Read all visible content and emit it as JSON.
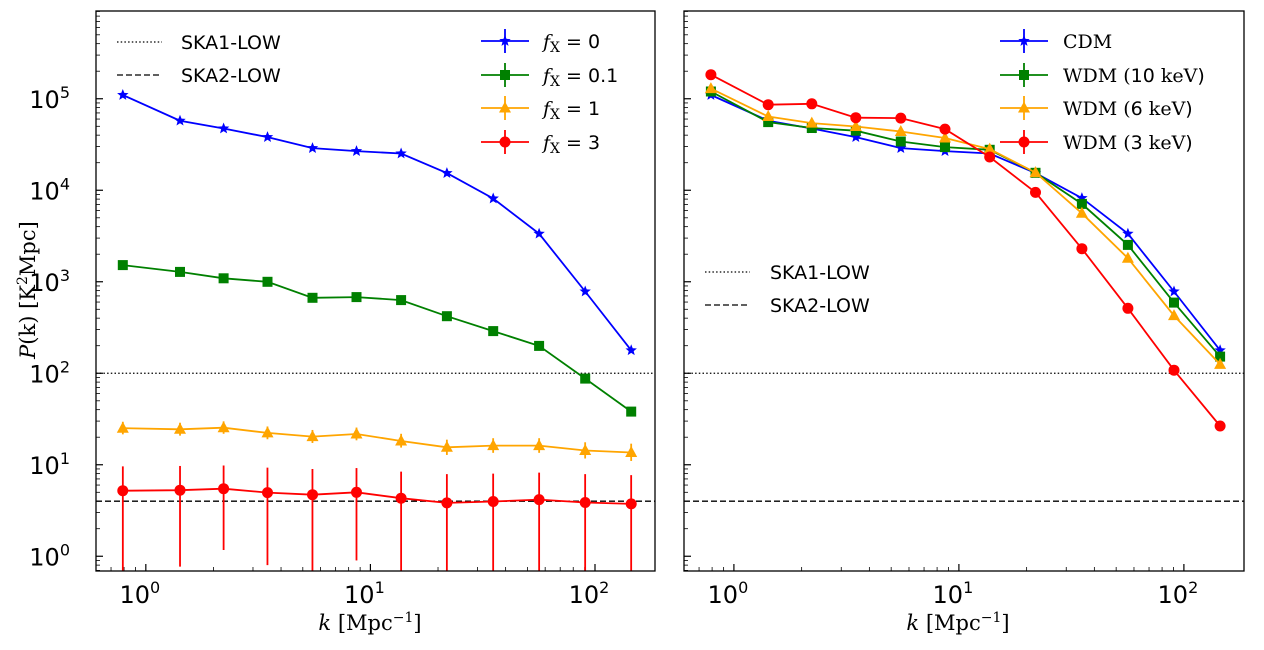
{
  "chart_data": [
    {
      "type": "line",
      "panel": "left",
      "title": "",
      "xlabel": "k [Mpc^-1]",
      "ylabel": "P(k) [K^2Mpc]",
      "xscale": "log",
      "yscale": "log",
      "xlim": [
        0.6,
        185
      ],
      "ylim": [
        0.69,
        910000
      ],
      "x_ticks": [
        {
          "value": 1,
          "base": "10",
          "exp": "0"
        },
        {
          "value": 10,
          "base": "10",
          "exp": "1"
        },
        {
          "value": 100,
          "base": "10",
          "exp": "2"
        }
      ],
      "y_ticks": [
        {
          "value": 1,
          "base": "10",
          "exp": "0"
        },
        {
          "value": 10,
          "base": "10",
          "exp": "1"
        },
        {
          "value": 100,
          "base": "10",
          "exp": "2"
        },
        {
          "value": 1000,
          "base": "10",
          "exp": "3"
        },
        {
          "value": 10000,
          "base": "10",
          "exp": "4"
        },
        {
          "value": 100000,
          "base": "10",
          "exp": "5"
        }
      ],
      "grid": false,
      "x": [
        0.79,
        1.42,
        2.22,
        3.48,
        5.52,
        8.67,
        13.7,
        21.9,
        35.2,
        56.4,
        90.4,
        144.9
      ],
      "series": [
        {
          "name": "f_X = 0",
          "label_var": "f",
          "label_sub": "X",
          "label_rest": " = 0",
          "color": "#0000ff",
          "marker": "star",
          "values": [
            110000,
            57500,
            47300,
            38100,
            28900,
            26800,
            25200,
            15400,
            8130,
            3350,
            783,
            178
          ],
          "err_low": null,
          "err_high": null
        },
        {
          "name": "f_X = 0.1",
          "label_var": "f",
          "label_sub": "X",
          "label_rest": " = 0.1",
          "color": "#008000",
          "marker": "square",
          "values": [
            1520,
            1280,
            1090,
            1000,
            668,
            680,
            631,
            420,
            289,
            199,
            87.5,
            38.1
          ],
          "err_low": null,
          "err_high": null
        },
        {
          "name": "f_X = 1",
          "label_var": "f",
          "label_sub": "X",
          "label_rest": " = 1",
          "color": "#ffa500",
          "marker": "triangle",
          "values": [
            25.1,
            24.4,
            25.4,
            22.3,
            20.3,
            21.7,
            18.2,
            15.5,
            16.2,
            16.2,
            14.3,
            13.6
          ],
          "err_low": [
            21.5,
            20.8,
            21.8,
            19.0,
            17.3,
            18.5,
            15.4,
            12.8,
            13.5,
            13.5,
            11.7,
            11.0
          ],
          "err_high": [
            29.5,
            28.8,
            29.8,
            26.2,
            24.0,
            25.5,
            21.8,
            18.8,
            19.5,
            19.5,
            17.6,
            17.0
          ]
        },
        {
          "name": "f_X = 3",
          "label_var": "f",
          "label_sub": "X",
          "label_rest": " = 3",
          "color": "#ff0000",
          "marker": "circle",
          "values": [
            5.21,
            5.27,
            5.48,
            4.96,
            4.71,
            5.0,
            4.31,
            3.83,
            3.97,
            4.16,
            3.87,
            3.73
          ],
          "err_low": [
            0.3,
            0.77,
            1.17,
            0.8,
            0.3,
            0.9,
            0.3,
            0.3,
            0.3,
            0.3,
            0.3,
            0.3
          ],
          "err_high": [
            9.6,
            9.7,
            9.8,
            9.3,
            9.0,
            9.2,
            8.4,
            7.9,
            8.0,
            8.2,
            7.9,
            7.7
          ]
        }
      ],
      "hlines": [
        {
          "name": "SKA1-LOW",
          "value": 100,
          "style": "dotted",
          "color": "#000000"
        },
        {
          "name": "SKA2-LOW",
          "value": 4,
          "style": "dashed",
          "color": "#000000"
        }
      ],
      "legends": [
        {
          "placement": "top-left",
          "entries": [
            "SKA1-LOW",
            "SKA2-LOW"
          ]
        },
        {
          "placement": "top-right",
          "entries": [
            "f_X = 0",
            "f_X = 0.1",
            "f_X = 1",
            "f_X = 3"
          ]
        }
      ]
    },
    {
      "type": "line",
      "panel": "right",
      "title": "",
      "xlabel": "k [Mpc^-1]",
      "ylabel": "",
      "xscale": "log",
      "yscale": "log",
      "xlim": [
        0.6,
        185
      ],
      "ylim": [
        0.69,
        910000
      ],
      "x_ticks": [
        {
          "value": 1,
          "base": "10",
          "exp": "0"
        },
        {
          "value": 10,
          "base": "10",
          "exp": "1"
        },
        {
          "value": 100,
          "base": "10",
          "exp": "2"
        }
      ],
      "y_ticks": [],
      "grid": false,
      "x": [
        0.79,
        1.42,
        2.22,
        3.48,
        5.52,
        8.67,
        13.7,
        21.9,
        35.2,
        56.4,
        90.4,
        144.9
      ],
      "series": [
        {
          "name": "CDM",
          "color": "#0000ff",
          "marker": "star",
          "values": [
            110000,
            57500,
            47300,
            38100,
            28900,
            26800,
            25200,
            15400,
            8200,
            3350,
            783,
            178
          ]
        },
        {
          "name": "WDM (10 keV)",
          "color": "#008000",
          "marker": "square",
          "values": [
            120000,
            55600,
            47900,
            44700,
            34100,
            29600,
            27700,
            15500,
            7100,
            2530,
            592,
            152
          ]
        },
        {
          "name": "WDM (6 keV)",
          "color": "#ffa500",
          "marker": "triangle",
          "values": [
            129000,
            64000,
            54200,
            49800,
            43900,
            37200,
            28200,
            15600,
            5600,
            1810,
            427,
            125
          ]
        },
        {
          "name": "WDM (3 keV)",
          "color": "#ff0000",
          "marker": "circle",
          "values": [
            183000,
            86000,
            88000,
            62000,
            61500,
            46600,
            23100,
            9470,
            2300,
            513,
            108,
            26.5
          ]
        }
      ],
      "hlines": [
        {
          "name": "SKA1-LOW",
          "value": 100,
          "style": "dotted",
          "color": "#000000"
        },
        {
          "name": "SKA2-LOW",
          "value": 4,
          "style": "dashed",
          "color": "#000000"
        }
      ],
      "legends": [
        {
          "placement": "top-right",
          "entries": [
            "CDM",
            "WDM (10 keV)",
            "WDM (6 keV)",
            "WDM (3 keV)"
          ]
        },
        {
          "placement": "center-left",
          "entries": [
            "SKA1-LOW",
            "SKA2-LOW"
          ]
        }
      ]
    }
  ],
  "labels": {
    "ylabel_left": "P(k) [K²Mpc]",
    "ylabel_P": "P",
    "ylabel_k": "(k)",
    "ylabel_unit": " [K",
    "ylabel_sup": "2",
    "ylabel_unit_end": "Mpc]",
    "xlabel_k": "k",
    "xlabel_unit": " [Mpc",
    "xlabel_sup": "−1",
    "xlabel_end": "]",
    "ska1": "SKA1-LOW",
    "ska2": "SKA2-LOW",
    "left_legend": [
      {
        "var": "f",
        "sub": "X",
        "rest": " = 0"
      },
      {
        "var": "f",
        "sub": "X",
        "rest": " = 0.1"
      },
      {
        "var": "f",
        "sub": "X",
        "rest": " = 1"
      },
      {
        "var": "f",
        "sub": "X",
        "rest": " = 3"
      }
    ],
    "right_legend": [
      {
        "serif": "CDM",
        "sans": "",
        "serif2": "",
        "close": ""
      },
      {
        "serif": "WDM (",
        "sans": "10",
        "serif2": " keV",
        "close": ")"
      },
      {
        "serif": "WDM (",
        "sans": "6",
        "serif2": " keV",
        "close": ")"
      },
      {
        "serif": "WDM (",
        "sans": "3",
        "serif2": " keV",
        "close": ")"
      }
    ]
  }
}
